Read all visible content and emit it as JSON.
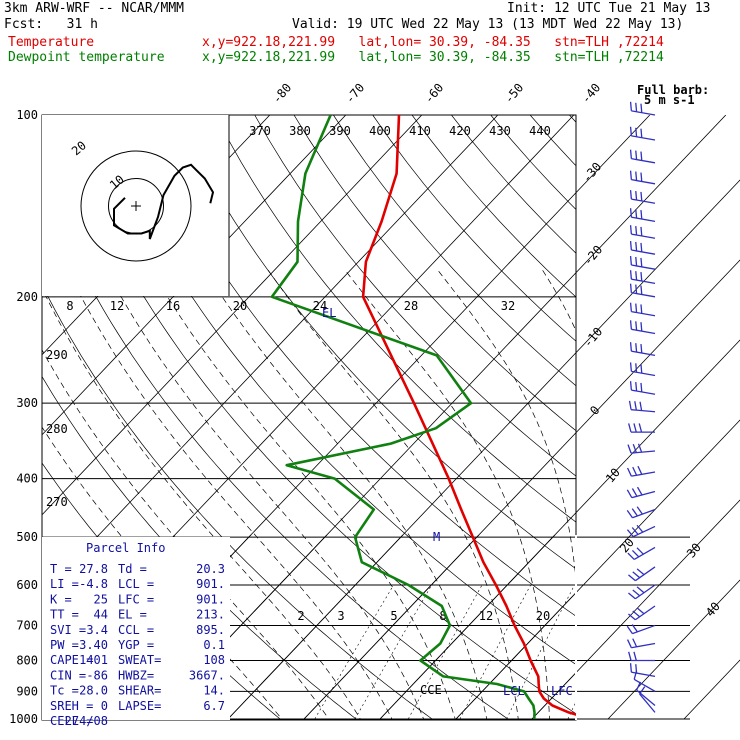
{
  "header": {
    "model": "3km ARW-WRF -- NCAR/MMM",
    "init": "Init: 12 UTC Tue 21 May 13",
    "fcst": "Fcst:   31 h",
    "valid": "Valid: 19 UTC Wed 22 May 13 (13 MDT Wed 22 May 13)",
    "temp_label": "Temperature",
    "temp_loc": "x,y=922.18,221.99   lat,lon= 30.39, -84.35   stn=TLH ,72214",
    "dew_label": "Dewpoint temperature",
    "dew_loc": "x,y=922.18,221.99   lat,lon= 30.39, -84.35   stn=TLH ,72214"
  },
  "colors": {
    "temperature": "#e00000",
    "dewpoint": "#108010",
    "hodograph": "#000000",
    "barbs": "#3030c0",
    "info": "#1010a0"
  },
  "chart_data": [
    {
      "type": "line",
      "subtype": "skew-T log-P",
      "y_axis": "pressure (hPa), log scale",
      "ylim": [
        1000,
        100
      ],
      "pressure_ticks": [
        100,
        200,
        300,
        400,
        500,
        600,
        700,
        800,
        900,
        1000
      ],
      "isotherm_labels": [
        "-80",
        "-70",
        "-60",
        "-50",
        "-40",
        "-30",
        "-20",
        "-10",
        "0",
        "10",
        "20",
        "30",
        "40"
      ],
      "theta_labels": [
        "370",
        "380",
        "390",
        "400",
        "410",
        "420",
        "430",
        "440"
      ],
      "theta_e_labels": [
        "290",
        "280",
        "270"
      ],
      "mixing_ratio_labels": [
        "2",
        "3",
        "5",
        "8",
        "12",
        "20"
      ],
      "series": [
        {
          "name": "Temperature",
          "p": [
            1000,
            975,
            950,
            925,
            900,
            875,
            850,
            800,
            750,
            700,
            650,
            600,
            550,
            500,
            450,
            400,
            350,
            300,
            250,
            200,
            175,
            150,
            125,
            100
          ],
          "t": [
            27.8,
            24,
            21,
            19,
            17.5,
            16.5,
            15.5,
            12.5,
            9.5,
            6,
            2.5,
            -1.5,
            -6,
            -10.5,
            -15.5,
            -21,
            -27.5,
            -35,
            -44,
            -55,
            -59,
            -62,
            -66,
            -73
          ]
        },
        {
          "name": "Dewpoint temperature",
          "p": [
            1000,
            975,
            950,
            925,
            900,
            875,
            850,
            800,
            750,
            700,
            650,
            600,
            550,
            500,
            450,
            400,
            380,
            350,
            330,
            300,
            250,
            200,
            175,
            150,
            125,
            100
          ],
          "t": [
            20.3,
            19.5,
            18.5,
            17,
            15.5,
            11,
            3,
            -2,
            -1.5,
            -2.5,
            -6,
            -13,
            -22,
            -26,
            -27,
            -36,
            -44,
            -33,
            -29,
            -27.5,
            -38,
            -67,
            -68,
            -73,
            -78,
            -82
          ]
        }
      ]
    },
    {
      "type": "line",
      "subtype": "hodograph",
      "axis_labels": [
        "kts",
        "8",
        "12",
        "16",
        "20",
        "24",
        "28",
        "32"
      ],
      "ring_labels": [
        "10",
        "20"
      ],
      "u": [
        -4,
        -8,
        -8,
        -3,
        2,
        5,
        5,
        8,
        10,
        14,
        17,
        20,
        22,
        25,
        28,
        27
      ],
      "v": [
        3,
        -1,
        -7,
        -10,
        -10,
        -9,
        -12,
        -4,
        4,
        11,
        14,
        15,
        13,
        10,
        5,
        1
      ]
    },
    {
      "type": "table",
      "title": "Parcel Info",
      "rows": [
        [
          "T  =",
          "27.8",
          "Td =",
          "20.3"
        ],
        [
          "LI =",
          "-4.8",
          "LCL =",
          "901."
        ],
        [
          "K  =",
          "25",
          "LFC =",
          "901."
        ],
        [
          "TT =",
          "44",
          "EL =",
          "213."
        ],
        [
          "SVI =",
          "3.4",
          "CCL =",
          "895."
        ],
        [
          "PW =",
          "3.40",
          "YGP =",
          "0.1"
        ],
        [
          "CAPE =",
          "1401",
          "SWEAT=",
          "108"
        ],
        [
          "CIN =",
          "-86",
          "HWBZ=",
          "3667."
        ],
        [
          "Tc =",
          "28.0",
          "SHEAR=",
          "14."
        ],
        [
          "SREH =",
          "0",
          "LAPSE=",
          "6.7"
        ],
        [
          "CELL =",
          "274/08",
          "",
          ""
        ]
      ]
    },
    {
      "type": "scatter",
      "subtype": "wind barbs",
      "title": "Full barb: 5 m s-1",
      "p": [
        100,
        110,
        120,
        130,
        140,
        150,
        160,
        170,
        180,
        190,
        200,
        215,
        230,
        250,
        270,
        290,
        310,
        335,
        360,
        390,
        420,
        450,
        480,
        520,
        560,
        600,
        650,
        700,
        750,
        800,
        850,
        900,
        950,
        975
      ],
      "dir": [
        280,
        280,
        280,
        280,
        280,
        280,
        280,
        280,
        280,
        280,
        280,
        280,
        280,
        280,
        280,
        280,
        275,
        270,
        265,
        260,
        255,
        250,
        245,
        240,
        235,
        235,
        235,
        250,
        260,
        270,
        280,
        300,
        310,
        320
      ],
      "speed_ms": [
        15,
        15,
        15,
        15,
        15,
        15,
        15,
        15,
        15,
        15,
        15,
        15,
        15,
        15,
        15,
        15,
        15,
        15,
        15,
        15,
        15,
        15,
        15,
        15,
        15,
        15,
        15,
        10,
        10,
        10,
        10,
        5,
        5,
        5
      ]
    }
  ],
  "annotations": {
    "el": "EL",
    "m": "M",
    "cce": "CCE",
    "lcl": "LCL",
    "lfc": "LFC"
  }
}
